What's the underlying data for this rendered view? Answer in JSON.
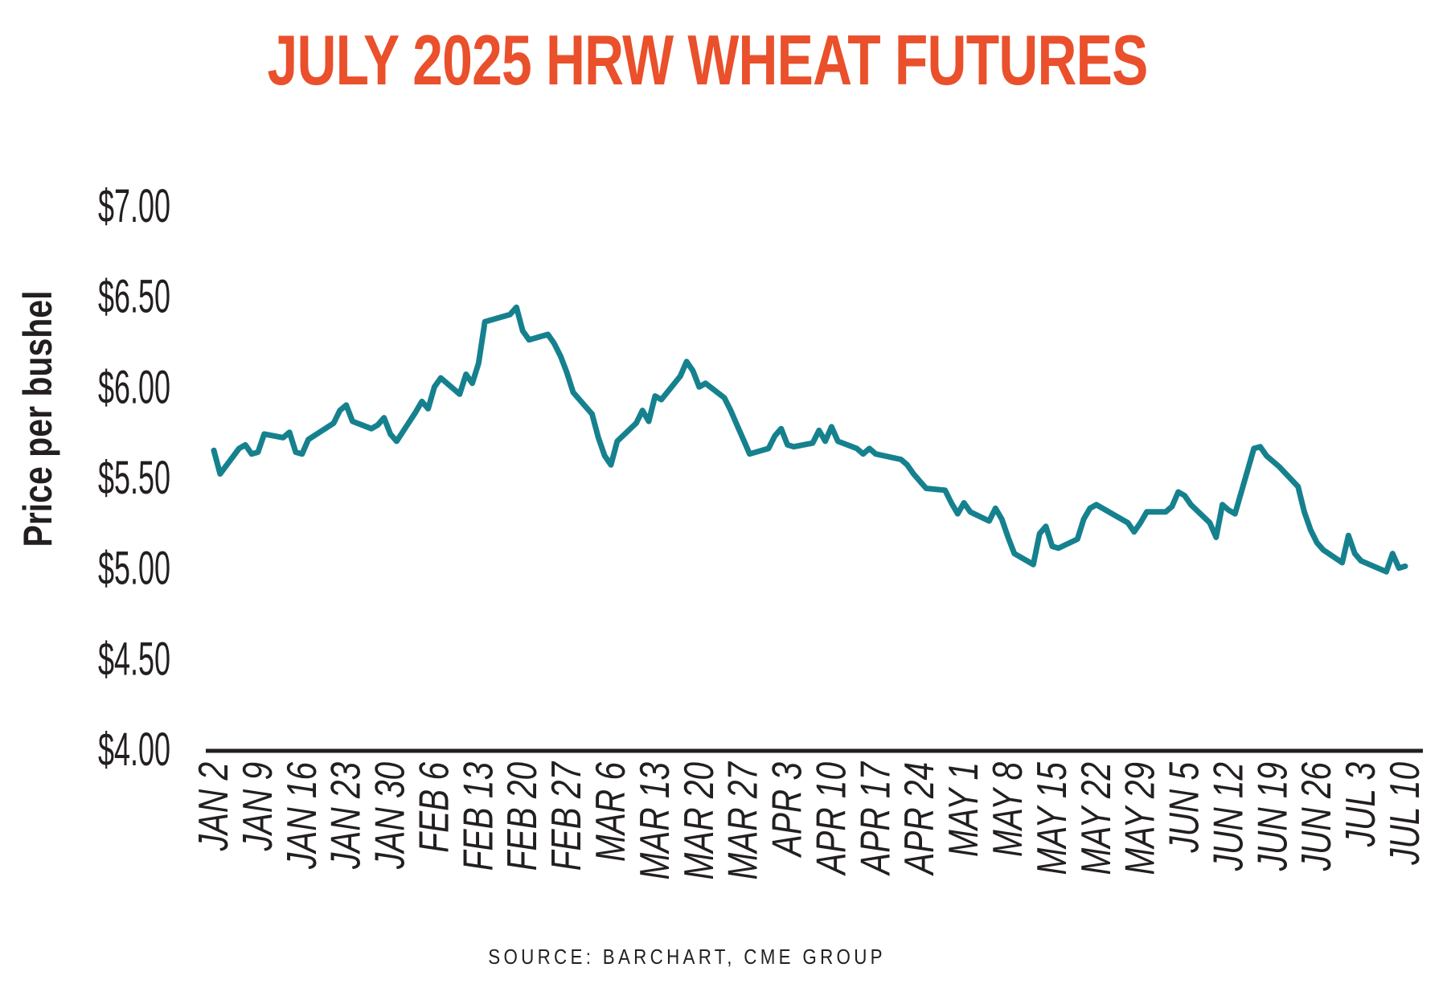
{
  "title": "JULY 2025 HRW WHEAT FUTURES",
  "source": "SOURCE: BARCHART, CME GROUP",
  "colors": {
    "title": "#E9502B",
    "line": "#16818E",
    "text": "#231F20",
    "axis": "#231F20"
  },
  "chart_data": {
    "type": "line",
    "title": "JULY 2025 HRW WHEAT FUTURES",
    "xlabel": "",
    "ylabel": "Price per bushel",
    "ylim": [
      4.0,
      7.0
    ],
    "y_tick_values": [
      7.0,
      6.5,
      6.0,
      5.5,
      5.0,
      4.5,
      4.0
    ],
    "y_tick_labels": [
      "$7.00",
      "$6.50",
      "$6.00",
      "$5.50",
      "$5.00",
      "$4.50",
      "$4.00"
    ],
    "x_tick_labels": [
      "JAN 2",
      "JAN 9",
      "JAN 16",
      "JAN 23",
      "JAN 30",
      "FEB 6",
      "FEB 13",
      "FEB 20",
      "FEB 27",
      "MAR 6",
      "MAR 13",
      "MAR 20",
      "MAR 27",
      "APR 3",
      "APR 10",
      "APR 17",
      "APR 24",
      "MAY 1",
      "MAY 8",
      "MAY 15",
      "MAY 22",
      "MAY 29",
      "JUN 5",
      "JUN 12",
      "JUN 19",
      "JUN 26",
      "JUL 3",
      "JUL 10"
    ],
    "x_tick_interval_days": 7,
    "grid": false,
    "legend": false,
    "series": [
      {
        "name": "July 2025 HRW wheat futures price ($ per bushel)",
        "points": [
          [
            "2025-01-02",
            5.65
          ],
          [
            "2025-01-03",
            5.52
          ],
          [
            "2025-01-06",
            5.66
          ],
          [
            "2025-01-07",
            5.68
          ],
          [
            "2025-01-08",
            5.63
          ],
          [
            "2025-01-09",
            5.64
          ],
          [
            "2025-01-10",
            5.74
          ],
          [
            "2025-01-13",
            5.72
          ],
          [
            "2025-01-14",
            5.75
          ],
          [
            "2025-01-15",
            5.64
          ],
          [
            "2025-01-16",
            5.63
          ],
          [
            "2025-01-17",
            5.71
          ],
          [
            "2025-01-21",
            5.8
          ],
          [
            "2025-01-22",
            5.87
          ],
          [
            "2025-01-23",
            5.9
          ],
          [
            "2025-01-24",
            5.81
          ],
          [
            "2025-01-27",
            5.77
          ],
          [
            "2025-01-28",
            5.79
          ],
          [
            "2025-01-29",
            5.83
          ],
          [
            "2025-01-30",
            5.74
          ],
          [
            "2025-01-31",
            5.7
          ],
          [
            "2025-02-03",
            5.86
          ],
          [
            "2025-02-04",
            5.92
          ],
          [
            "2025-02-05",
            5.88
          ],
          [
            "2025-02-06",
            6.0
          ],
          [
            "2025-02-07",
            6.05
          ],
          [
            "2025-02-10",
            5.96
          ],
          [
            "2025-02-11",
            6.07
          ],
          [
            "2025-02-12",
            6.02
          ],
          [
            "2025-02-13",
            6.13
          ],
          [
            "2025-02-14",
            6.36
          ],
          [
            "2025-02-18",
            6.4
          ],
          [
            "2025-02-19",
            6.44
          ],
          [
            "2025-02-20",
            6.31
          ],
          [
            "2025-02-21",
            6.26
          ],
          [
            "2025-02-24",
            6.29
          ],
          [
            "2025-02-25",
            6.24
          ],
          [
            "2025-02-26",
            6.17
          ],
          [
            "2025-02-27",
            6.08
          ],
          [
            "2025-02-28",
            5.97
          ],
          [
            "2025-03-03",
            5.85
          ],
          [
            "2025-03-04",
            5.72
          ],
          [
            "2025-03-05",
            5.62
          ],
          [
            "2025-03-06",
            5.57
          ],
          [
            "2025-03-07",
            5.7
          ],
          [
            "2025-03-10",
            5.8
          ],
          [
            "2025-03-11",
            5.87
          ],
          [
            "2025-03-12",
            5.81
          ],
          [
            "2025-03-13",
            5.95
          ],
          [
            "2025-03-14",
            5.93
          ],
          [
            "2025-03-17",
            6.06
          ],
          [
            "2025-03-18",
            6.14
          ],
          [
            "2025-03-19",
            6.09
          ],
          [
            "2025-03-20",
            6.0
          ],
          [
            "2025-03-21",
            6.02
          ],
          [
            "2025-03-24",
            5.94
          ],
          [
            "2025-03-25",
            5.87
          ],
          [
            "2025-03-26",
            5.79
          ],
          [
            "2025-03-27",
            5.71
          ],
          [
            "2025-03-28",
            5.63
          ],
          [
            "2025-03-31",
            5.66
          ],
          [
            "2025-04-01",
            5.73
          ],
          [
            "2025-04-02",
            5.77
          ],
          [
            "2025-04-03",
            5.68
          ],
          [
            "2025-04-04",
            5.67
          ],
          [
            "2025-04-07",
            5.69
          ],
          [
            "2025-04-08",
            5.76
          ],
          [
            "2025-04-09",
            5.7
          ],
          [
            "2025-04-10",
            5.78
          ],
          [
            "2025-04-11",
            5.7
          ],
          [
            "2025-04-14",
            5.66
          ],
          [
            "2025-04-15",
            5.63
          ],
          [
            "2025-04-16",
            5.66
          ],
          [
            "2025-04-17",
            5.63
          ],
          [
            "2025-04-21",
            5.6
          ],
          [
            "2025-04-22",
            5.57
          ],
          [
            "2025-04-23",
            5.52
          ],
          [
            "2025-04-24",
            5.48
          ],
          [
            "2025-04-25",
            5.44
          ],
          [
            "2025-04-28",
            5.43
          ],
          [
            "2025-04-29",
            5.36
          ],
          [
            "2025-04-30",
            5.3
          ],
          [
            "2025-05-01",
            5.36
          ],
          [
            "2025-05-02",
            5.31
          ],
          [
            "2025-05-05",
            5.26
          ],
          [
            "2025-05-06",
            5.33
          ],
          [
            "2025-05-07",
            5.27
          ],
          [
            "2025-05-08",
            5.17
          ],
          [
            "2025-05-09",
            5.08
          ],
          [
            "2025-05-12",
            5.02
          ],
          [
            "2025-05-13",
            5.19
          ],
          [
            "2025-05-14",
            5.23
          ],
          [
            "2025-05-15",
            5.12
          ],
          [
            "2025-05-16",
            5.11
          ],
          [
            "2025-05-19",
            5.16
          ],
          [
            "2025-05-20",
            5.27
          ],
          [
            "2025-05-21",
            5.33
          ],
          [
            "2025-05-22",
            5.35
          ],
          [
            "2025-05-23",
            5.33
          ],
          [
            "2025-05-27",
            5.25
          ],
          [
            "2025-05-28",
            5.2
          ],
          [
            "2025-05-29",
            5.25
          ],
          [
            "2025-05-30",
            5.31
          ],
          [
            "2025-06-02",
            5.31
          ],
          [
            "2025-06-03",
            5.34
          ],
          [
            "2025-06-04",
            5.42
          ],
          [
            "2025-06-05",
            5.4
          ],
          [
            "2025-06-06",
            5.35
          ],
          [
            "2025-06-09",
            5.25
          ],
          [
            "2025-06-10",
            5.17
          ],
          [
            "2025-06-11",
            5.35
          ],
          [
            "2025-06-12",
            5.32
          ],
          [
            "2025-06-13",
            5.3
          ],
          [
            "2025-06-16",
            5.66
          ],
          [
            "2025-06-17",
            5.67
          ],
          [
            "2025-06-18",
            5.62
          ],
          [
            "2025-06-20",
            5.56
          ],
          [
            "2025-06-23",
            5.45
          ],
          [
            "2025-06-24",
            5.31
          ],
          [
            "2025-06-25",
            5.21
          ],
          [
            "2025-06-26",
            5.14
          ],
          [
            "2025-06-27",
            5.1
          ],
          [
            "2025-06-30",
            5.03
          ],
          [
            "2025-07-01",
            5.18
          ],
          [
            "2025-07-02",
            5.08
          ],
          [
            "2025-07-03",
            5.04
          ],
          [
            "2025-07-07",
            4.98
          ],
          [
            "2025-07-08",
            5.08
          ],
          [
            "2025-07-09",
            5.0
          ],
          [
            "2025-07-10",
            5.01
          ]
        ]
      }
    ]
  }
}
